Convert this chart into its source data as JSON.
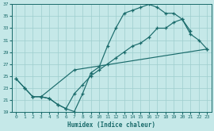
{
  "xlabel": "Humidex (Indice chaleur)",
  "background_color": "#c5e8e8",
  "grid_color": "#9ecece",
  "line_color": "#1a6b6b",
  "xlim": [
    -0.5,
    23.5
  ],
  "ylim": [
    19,
    37
  ],
  "xticks": [
    0,
    1,
    2,
    3,
    4,
    5,
    6,
    7,
    8,
    9,
    10,
    11,
    12,
    13,
    14,
    15,
    16,
    17,
    18,
    19,
    20,
    21,
    22,
    23
  ],
  "yticks": [
    19,
    21,
    23,
    25,
    27,
    29,
    31,
    33,
    35,
    37
  ],
  "curve1_x": [
    0,
    1,
    2,
    3,
    4,
    5,
    6,
    7,
    8,
    9,
    10,
    11,
    12,
    13,
    14,
    15,
    16,
    17,
    18,
    19,
    20,
    21
  ],
  "curve1_y": [
    24.5,
    23,
    21.5,
    21.5,
    21.2,
    20.2,
    19.5,
    19,
    22,
    25.5,
    26.5,
    30,
    33,
    35.5,
    36,
    36.5,
    37,
    36.5,
    35.5,
    35.5,
    34.5,
    32.5
  ],
  "curve2_x": [
    3,
    7,
    23
  ],
  "curve2_y": [
    21.5,
    26.0,
    29.5
  ],
  "curve3_x": [
    0,
    1,
    2,
    3,
    4,
    5,
    6,
    7,
    8,
    9,
    10,
    11,
    12,
    13,
    14,
    15,
    16,
    17,
    18,
    19,
    20,
    21,
    22,
    23
  ],
  "curve3_y": [
    24.5,
    23,
    21.5,
    21.5,
    21.2,
    20.2,
    19.5,
    22.0,
    23.5,
    25.0,
    26.0,
    27.0,
    28.0,
    29.0,
    30.0,
    30.5,
    31.5,
    33.0,
    33.0,
    34.0,
    34.5,
    32.0,
    31.0,
    29.5
  ]
}
